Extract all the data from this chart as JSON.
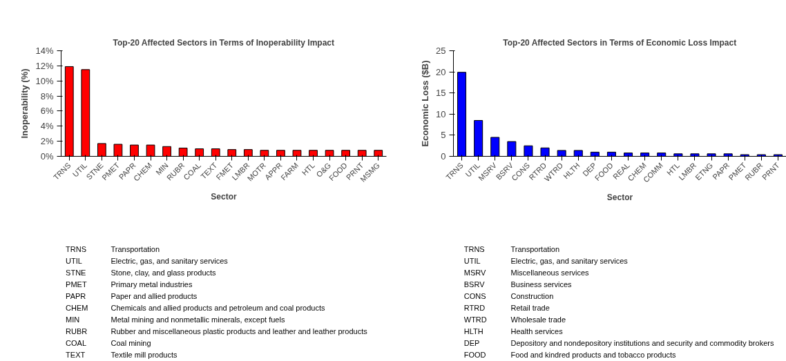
{
  "chart_data": [
    {
      "type": "bar",
      "title": "Top-20 Affected Sectors in Terms of Inoperability Impact",
      "xlabel": "Sector",
      "ylabel": "Inoperability (%)",
      "categories": [
        "TRNS",
        "UTIL",
        "STNE",
        "PMET",
        "PAPR",
        "CHEM",
        "MIN",
        "RUBR",
        "COAL",
        "TEXT",
        "FMET",
        "LMBR",
        "MOTR",
        "APPR",
        "FARM",
        "HTL",
        "O&G",
        "FOOD",
        "PRNT",
        "MSMG"
      ],
      "series": [
        {
          "color": "#ff0000",
          "values": [
            11.9,
            11.5,
            1.7,
            1.6,
            1.5,
            1.5,
            1.3,
            1.1,
            1.0,
            1.0,
            0.9,
            0.9,
            0.8,
            0.8,
            0.8,
            0.8,
            0.8,
            0.8,
            0.8,
            0.8
          ]
        }
      ],
      "ylim": [
        0,
        14
      ],
      "yticks": [
        {
          "value": 0,
          "label": "0%"
        },
        {
          "value": 2,
          "label": "2%"
        },
        {
          "value": 4,
          "label": "4%"
        },
        {
          "value": 6,
          "label": "6%"
        },
        {
          "value": 8,
          "label": "8%"
        },
        {
          "value": 10,
          "label": "10%"
        },
        {
          "value": 12,
          "label": "12%"
        },
        {
          "value": 14,
          "label": "14%"
        }
      ],
      "grid": false,
      "annotations": [
        "TRNS",
        "Transportation",
        "UTIL",
        "Electric, gas, and sanitary services",
        "STNE",
        "Stone, clay, and glass products",
        "PMET",
        "Primary metal industries",
        "PAPR",
        "Paper and allied products",
        "CHEM",
        "Chemicals and allied products and petroleum and coal products",
        "MIN",
        "Metal mining and nonmetallic minerals, except fuels",
        "RUBR",
        "Rubber and miscellaneous plastic products and leather and leather products",
        "COAL",
        "Coal mining",
        "TEXT",
        "Textile mill products"
      ]
    },
    {
      "type": "bar",
      "title": "Top-20 Affected Sectors in Terms of Economic Loss Impact",
      "xlabel": "Sector",
      "ylabel": "Economic Loss ($B)",
      "categories": [
        "TRNS",
        "UTIL",
        "MSRV",
        "BSRV",
        "CONS",
        "RTRD",
        "WTRD",
        "HLTH",
        "DEP",
        "FOOD",
        "REAL",
        "CHEM",
        "COMM",
        "HTL",
        "LMBR",
        "ETNG",
        "PAPR",
        "PMET",
        "RUBR",
        "PRNT"
      ],
      "series": [
        {
          "color": "#0000ff",
          "values": [
            19.9,
            8.5,
            4.5,
            3.5,
            2.5,
            2.0,
            1.4,
            1.4,
            1.0,
            1.0,
            0.8,
            0.8,
            0.8,
            0.6,
            0.6,
            0.6,
            0.6,
            0.4,
            0.4,
            0.4
          ]
        }
      ],
      "ylim": [
        0,
        25
      ],
      "yticks": [
        0,
        5,
        10,
        15,
        20,
        25
      ],
      "grid": false,
      "annotations": [
        "TRNS",
        "Transportation",
        "UTIL",
        "Electric, gas, and sanitary services",
        "MSRV",
        "Miscellaneous services",
        "BSRV",
        "Business services",
        "CONS",
        "Construction",
        "RTRD",
        "Retail trade",
        "WTRD",
        "Wholesale trade",
        "HLTH",
        "Health services",
        "DEP",
        "Depository and nondepository institutions and security and commodity brokers",
        "FOOD",
        "Food and kindred products and tobacco products"
      ]
    }
  ]
}
